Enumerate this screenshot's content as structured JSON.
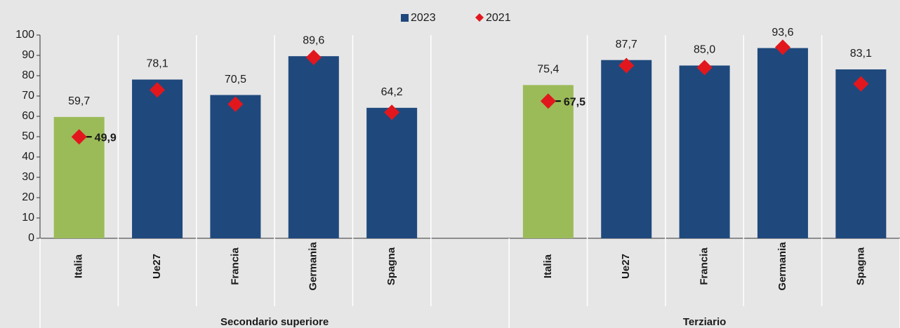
{
  "chart_data": {
    "type": "bar",
    "categories": [
      "Italia",
      "Ue27",
      "Francia",
      "Germania",
      "Spagna",
      null,
      "Italia",
      "Ue27",
      "Francia",
      "Germania",
      "Spagna"
    ],
    "groups": [
      "Secondario superiore",
      "Terziario"
    ],
    "category_groups": [
      0,
      0,
      0,
      0,
      0,
      0,
      1,
      1,
      1,
      1,
      1
    ],
    "series": [
      {
        "name": "2023",
        "color": "#1f497d",
        "marker": "bar",
        "colors": [
          "#9bbb59",
          "#1f497d",
          "#1f497d",
          "#1f497d",
          "#1f497d",
          null,
          "#9bbb59",
          "#1f497d",
          "#1f497d",
          "#1f497d",
          "#1f497d"
        ],
        "values": [
          59.7,
          78.1,
          70.5,
          89.6,
          64.2,
          null,
          75.4,
          87.7,
          85.0,
          93.6,
          83.1
        ],
        "value_labels": [
          "59,7",
          "78,1",
          "70,5",
          "89,6",
          "64,2",
          null,
          "75,4",
          "87,7",
          "85,0",
          "93,6",
          "83,1"
        ]
      },
      {
        "name": "2021",
        "color": "#e2171d",
        "marker": "diamond",
        "values": [
          49.9,
          73,
          66,
          89,
          62,
          null,
          67.5,
          85,
          84,
          94,
          76
        ],
        "value_labels": [
          "49,9",
          null,
          null,
          null,
          null,
          null,
          "67,5",
          null,
          null,
          null,
          null
        ]
      }
    ],
    "ylim": [
      0,
      100
    ],
    "yticks": [
      0,
      10,
      20,
      30,
      40,
      50,
      60,
      70,
      80,
      90,
      100
    ],
    "grid": false,
    "legend": "top"
  }
}
